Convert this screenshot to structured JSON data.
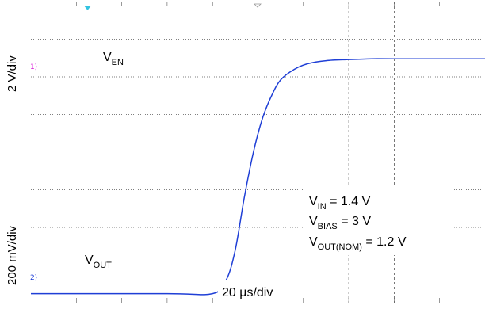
{
  "labels": {
    "y_scale_top": "2 V/div",
    "y_scale_bottom": "200 mV/div",
    "x_scale": "20 µs/div",
    "ven_main": "V",
    "ven_sub": "EN",
    "vout_main": "V",
    "vout_sub": "OUT"
  },
  "conditions": [
    {
      "main": "V",
      "sub": "IN",
      "value": " = 1.4 V"
    },
    {
      "main": "V",
      "sub": "BIAS",
      "value": " = 3 V"
    },
    {
      "main": "V",
      "sub": "OUT(NOM)",
      "value": " = 1.2 V"
    }
  ],
  "colors": {
    "ven_trace": "#d81bd8",
    "vout_trace": "#1f3fd6",
    "grid": "#555555",
    "trigger_marker": "#33c3e0"
  },
  "chart_data": {
    "type": "line",
    "x_unit": "µs",
    "x_per_div": 20,
    "x_range": [
      -60,
      140
    ],
    "x_divisions": 10,
    "y_divisions": 8,
    "series": [
      {
        "name": "VEN",
        "volts_per_div": 2,
        "x": [
          -60,
          -60,
          0,
          0,
          140
        ],
        "y_div": [
          -1.35,
          -1.35,
          -1.35,
          -0.63,
          -0.63
        ]
      },
      {
        "name": "VOUT",
        "volts_per_div": 0.2,
        "x": [
          -60,
          0,
          20,
          26,
          30,
          34,
          38,
          42,
          46,
          50,
          56,
          62,
          70,
          80,
          90,
          100,
          140
        ],
        "y_div": [
          7.76,
          7.76,
          7.76,
          7.4,
          6.6,
          5.2,
          4.0,
          3.1,
          2.5,
          2.08,
          1.8,
          1.65,
          1.57,
          1.54,
          1.52,
          1.52,
          1.52
        ]
      }
    ]
  }
}
